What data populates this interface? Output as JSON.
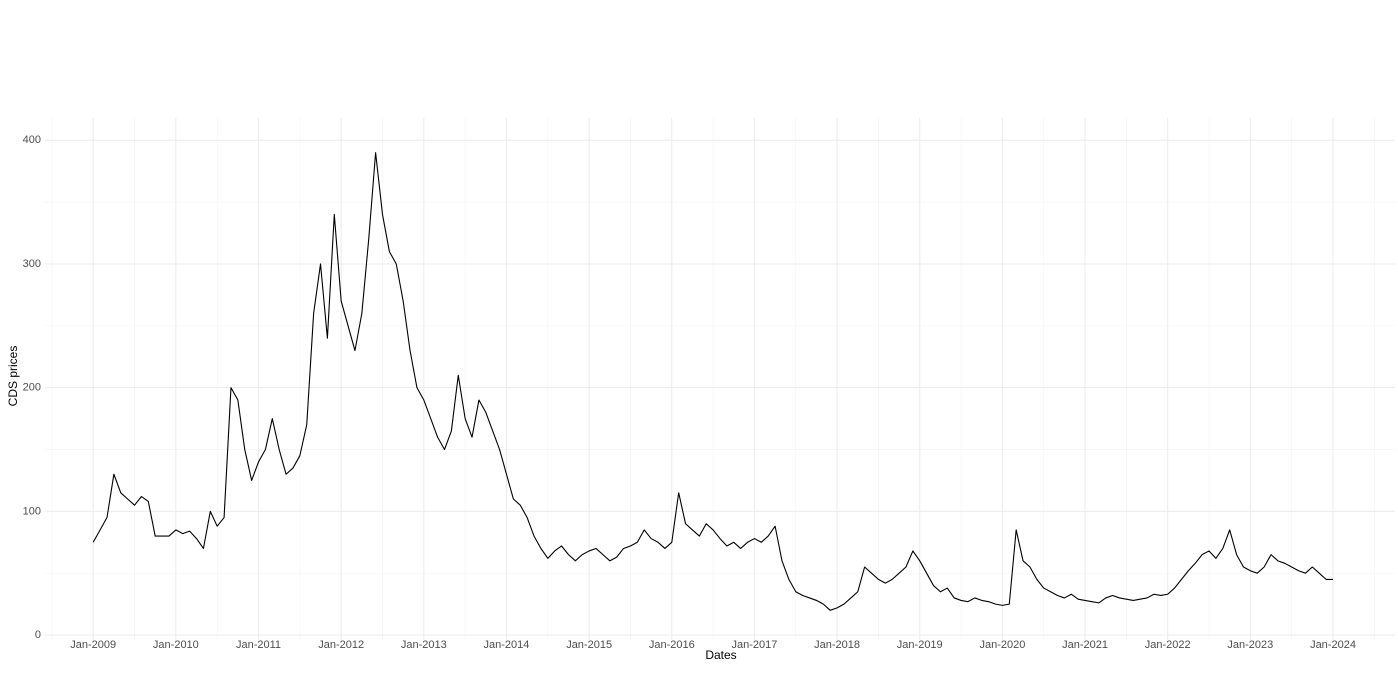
{
  "chart_data": {
    "type": "line",
    "x_label": "Dates",
    "y_label": "CDS prices",
    "color": "#000000",
    "grid": true,
    "xlim": [
      "2008-06",
      "2024-10"
    ],
    "ylim": [
      -4,
      418
    ],
    "yticks": [
      0,
      100,
      200,
      300,
      400
    ],
    "y_minor_ticks": [
      50,
      150,
      250,
      350
    ],
    "xticks": [
      {
        "value": "2009-01",
        "label": "Jan-2009"
      },
      {
        "value": "2010-01",
        "label": "Jan-2010"
      },
      {
        "value": "2011-01",
        "label": "Jan-2011"
      },
      {
        "value": "2012-01",
        "label": "Jan-2012"
      },
      {
        "value": "2013-01",
        "label": "Jan-2013"
      },
      {
        "value": "2014-01",
        "label": "Jan-2014"
      },
      {
        "value": "2015-01",
        "label": "Jan-2015"
      },
      {
        "value": "2016-01",
        "label": "Jan-2016"
      },
      {
        "value": "2017-01",
        "label": "Jan-2017"
      },
      {
        "value": "2018-01",
        "label": "Jan-2018"
      },
      {
        "value": "2019-01",
        "label": "Jan-2019"
      },
      {
        "value": "2020-01",
        "label": "Jan-2020"
      },
      {
        "value": "2021-01",
        "label": "Jan-2021"
      },
      {
        "value": "2022-01",
        "label": "Jan-2022"
      },
      {
        "value": "2023-01",
        "label": "Jan-2023"
      },
      {
        "value": "2024-01",
        "label": "Jan-2024"
      }
    ],
    "x_minor_ticks": [
      "2008-07",
      "2009-07",
      "2010-07",
      "2011-07",
      "2012-07",
      "2013-07",
      "2014-07",
      "2015-07",
      "2016-07",
      "2017-07",
      "2018-07",
      "2019-07",
      "2020-07",
      "2021-07",
      "2022-07",
      "2023-07",
      "2024-07"
    ],
    "x": [
      "2009-01",
      "2009-02",
      "2009-03",
      "2009-04",
      "2009-05",
      "2009-06",
      "2009-07",
      "2009-08",
      "2009-09",
      "2009-10",
      "2009-11",
      "2009-12",
      "2010-01",
      "2010-02",
      "2010-03",
      "2010-04",
      "2010-05",
      "2010-06",
      "2010-07",
      "2010-08",
      "2010-09",
      "2010-10",
      "2010-11",
      "2010-12",
      "2011-01",
      "2011-02",
      "2011-03",
      "2011-04",
      "2011-05",
      "2011-06",
      "2011-07",
      "2011-08",
      "2011-09",
      "2011-10",
      "2011-11",
      "2011-12",
      "2012-01",
      "2012-02",
      "2012-03",
      "2012-04",
      "2012-05",
      "2012-06",
      "2012-07",
      "2012-08",
      "2012-09",
      "2012-10",
      "2012-11",
      "2012-12",
      "2013-01",
      "2013-02",
      "2013-03",
      "2013-04",
      "2013-05",
      "2013-06",
      "2013-07",
      "2013-08",
      "2013-09",
      "2013-10",
      "2013-11",
      "2013-12",
      "2014-01",
      "2014-02",
      "2014-03",
      "2014-04",
      "2014-05",
      "2014-06",
      "2014-07",
      "2014-08",
      "2014-09",
      "2014-10",
      "2014-11",
      "2014-12",
      "2015-01",
      "2015-02",
      "2015-03",
      "2015-04",
      "2015-05",
      "2015-06",
      "2015-07",
      "2015-08",
      "2015-09",
      "2015-10",
      "2015-11",
      "2015-12",
      "2016-01",
      "2016-02",
      "2016-03",
      "2016-04",
      "2016-05",
      "2016-06",
      "2016-07",
      "2016-08",
      "2016-09",
      "2016-10",
      "2016-11",
      "2016-12",
      "2017-01",
      "2017-02",
      "2017-03",
      "2017-04",
      "2017-05",
      "2017-06",
      "2017-07",
      "2017-08",
      "2017-09",
      "2017-10",
      "2017-11",
      "2017-12",
      "2018-01",
      "2018-02",
      "2018-03",
      "2018-04",
      "2018-05",
      "2018-06",
      "2018-07",
      "2018-08",
      "2018-09",
      "2018-10",
      "2018-11",
      "2018-12",
      "2019-01",
      "2019-02",
      "2019-03",
      "2019-04",
      "2019-05",
      "2019-06",
      "2019-07",
      "2019-08",
      "2019-09",
      "2019-10",
      "2019-11",
      "2019-12",
      "2020-01",
      "2020-02",
      "2020-03",
      "2020-04",
      "2020-05",
      "2020-06",
      "2020-07",
      "2020-08",
      "2020-09",
      "2020-10",
      "2020-11",
      "2020-12",
      "2021-01",
      "2021-02",
      "2021-03",
      "2021-04",
      "2021-05",
      "2021-06",
      "2021-07",
      "2021-08",
      "2021-09",
      "2021-10",
      "2021-11",
      "2021-12",
      "2022-01",
      "2022-02",
      "2022-03",
      "2022-04",
      "2022-05",
      "2022-06",
      "2022-07",
      "2022-08",
      "2022-09",
      "2022-10",
      "2022-11",
      "2022-12",
      "2023-01",
      "2023-02",
      "2023-03",
      "2023-04",
      "2023-05",
      "2023-06",
      "2023-07",
      "2023-08",
      "2023-09",
      "2023-10",
      "2023-11",
      "2023-12",
      "2024-01"
    ],
    "values": [
      75,
      85,
      95,
      130,
      115,
      110,
      105,
      112,
      108,
      80,
      80,
      80,
      85,
      82,
      84,
      78,
      70,
      100,
      88,
      95,
      200,
      190,
      150,
      125,
      140,
      150,
      175,
      150,
      130,
      135,
      145,
      170,
      260,
      300,
      240,
      340,
      270,
      250,
      230,
      260,
      320,
      390,
      340,
      310,
      300,
      270,
      230,
      200,
      190,
      175,
      160,
      150,
      165,
      210,
      175,
      160,
      190,
      180,
      165,
      150,
      130,
      110,
      105,
      95,
      80,
      70,
      62,
      68,
      72,
      65,
      60,
      65,
      68,
      70,
      65,
      60,
      63,
      70,
      72,
      75,
      85,
      78,
      75,
      70,
      75,
      115,
      90,
      85,
      80,
      90,
      85,
      78,
      72,
      75,
      70,
      75,
      78,
      75,
      80,
      88,
      60,
      45,
      35,
      32,
      30,
      28,
      25,
      20,
      22,
      25,
      30,
      35,
      55,
      50,
      45,
      42,
      45,
      50,
      55,
      68,
      60,
      50,
      40,
      35,
      38,
      30,
      28,
      27,
      30,
      28,
      27,
      25,
      24,
      25,
      85,
      60,
      55,
      45,
      38,
      35,
      32,
      30,
      33,
      29,
      28,
      27,
      26,
      30,
      32,
      30,
      29,
      28,
      29,
      30,
      33,
      32,
      33,
      38,
      45,
      52,
      58,
      65,
      68,
      62,
      70,
      85,
      65,
      55,
      52,
      50,
      55,
      65,
      60,
      58,
      55,
      52,
      50,
      55,
      50,
      45,
      45
    ]
  }
}
